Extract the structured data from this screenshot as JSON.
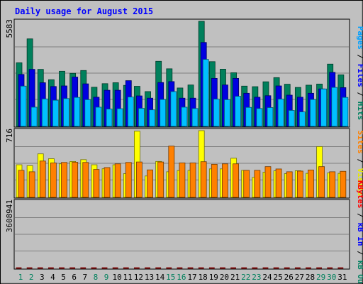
{
  "chart_data": {
    "type": "bar",
    "title": "Daily usage for August 2015",
    "categories": [
      "1",
      "2",
      "3",
      "4",
      "5",
      "6",
      "7",
      "8",
      "9",
      "10",
      "11",
      "12",
      "13",
      "14",
      "15",
      "16",
      "17",
      "18",
      "19",
      "20",
      "21",
      "22",
      "23",
      "24",
      "25",
      "26",
      "27",
      "28",
      "29",
      "30",
      "31"
    ],
    "weekend_days": [
      "1",
      "2",
      "8",
      "9",
      "15",
      "16",
      "22",
      "23",
      "29",
      "30"
    ],
    "panels": [
      {
        "name": "hits-files-pages",
        "ymax_label": "5583",
        "ymax": 5583,
        "right_labels": [
          {
            "text": "Pages",
            "color": "#00a0ff"
          },
          {
            "text": "Files",
            "color": "#0000ff"
          },
          {
            "text": "Hits",
            "color": "#008060"
          }
        ],
        "series": [
          {
            "name": "Hits",
            "color": "#00805c",
            "values": [
              3380,
              4650,
              3030,
              2480,
              2930,
              2820,
              2970,
              2080,
              2270,
              2320,
              2180,
              2130,
              1850,
              3460,
              3060,
              2040,
              2200,
              5583,
              3440,
              3040,
              2850,
              2140,
              2110,
              2370,
              2590,
              2240,
              2070,
              2190,
              2250,
              3310,
              2740
            ]
          },
          {
            "name": "Files",
            "color": "#0000e0",
            "values": [
              2760,
              3030,
              2320,
              2120,
              2150,
              2620,
              2260,
              1550,
              1920,
              1920,
              2430,
              1620,
              1500,
              2330,
              2380,
              1500,
              1500,
              4460,
              2550,
              2200,
              2550,
              1760,
              1550,
              1630,
              2150,
              1660,
              1550,
              1760,
              1990,
              2870,
              2060
            ]
          },
          {
            "name": "Pages",
            "color": "#00c0ff",
            "values": [
              2140,
              1020,
              1460,
              1390,
              1480,
              1540,
              1420,
              1020,
              920,
              940,
              1560,
              960,
              880,
              1430,
              1850,
              1020,
              950,
              3560,
              1450,
              1420,
              1600,
              1010,
              950,
              1000,
              1450,
              850,
              770,
              1430,
              1990,
              2070,
              1540
            ]
          }
        ]
      },
      {
        "name": "visits-sites",
        "ymax_label": "716",
        "ymax": 716,
        "right_labels": [
          {
            "text": "Sites",
            "color": "#ff8000"
          },
          {
            "text": "Visits",
            "color": "#e8e800"
          }
        ],
        "series": [
          {
            "name": "Visits",
            "color": "#ffff00",
            "values": [
              350,
              340,
              467,
              415,
              360,
              385,
              405,
              350,
              307,
              350,
              255,
              710,
              230,
              386,
              275,
              288,
              290,
              716,
              306,
              306,
              420,
              290,
              215,
              270,
              285,
              255,
              286,
              258,
              545,
              262,
              258
            ]
          },
          {
            "name": "Sites",
            "color": "#ff8000",
            "values": [
              290,
              275,
              390,
              370,
              375,
              377,
              375,
              300,
              320,
              360,
              375,
              380,
              295,
              380,
              550,
              370,
              370,
              383,
              355,
              360,
              360,
              290,
              290,
              330,
              305,
              275,
              282,
              294,
              330,
              275,
              280
            ]
          }
        ]
      },
      {
        "name": "kbytes",
        "ymax_label": "3608941",
        "ymax": 3608941,
        "right_labels": [
          {
            "text": "KBytes",
            "color": "#ff0000"
          },
          {
            "text": "kB In",
            "color": "#0000ff"
          },
          {
            "text": "kB Out",
            "color": "#008060"
          }
        ],
        "series": [
          {
            "name": "KBytes",
            "color": "#ff0000",
            "values": [
              1950,
              2310,
              2580,
              2440,
              4100,
              2250,
              2700,
              1160,
              1260,
              3990,
              1610,
              1670,
              1090,
              1470,
              2920,
              1050,
              1130,
              2080,
              4720,
              1140,
              3480,
              1610,
              1320,
              2130,
              1250,
              1260,
              1190,
              1090,
              2140,
              1670,
              1510
            ]
          }
        ]
      }
    ]
  }
}
